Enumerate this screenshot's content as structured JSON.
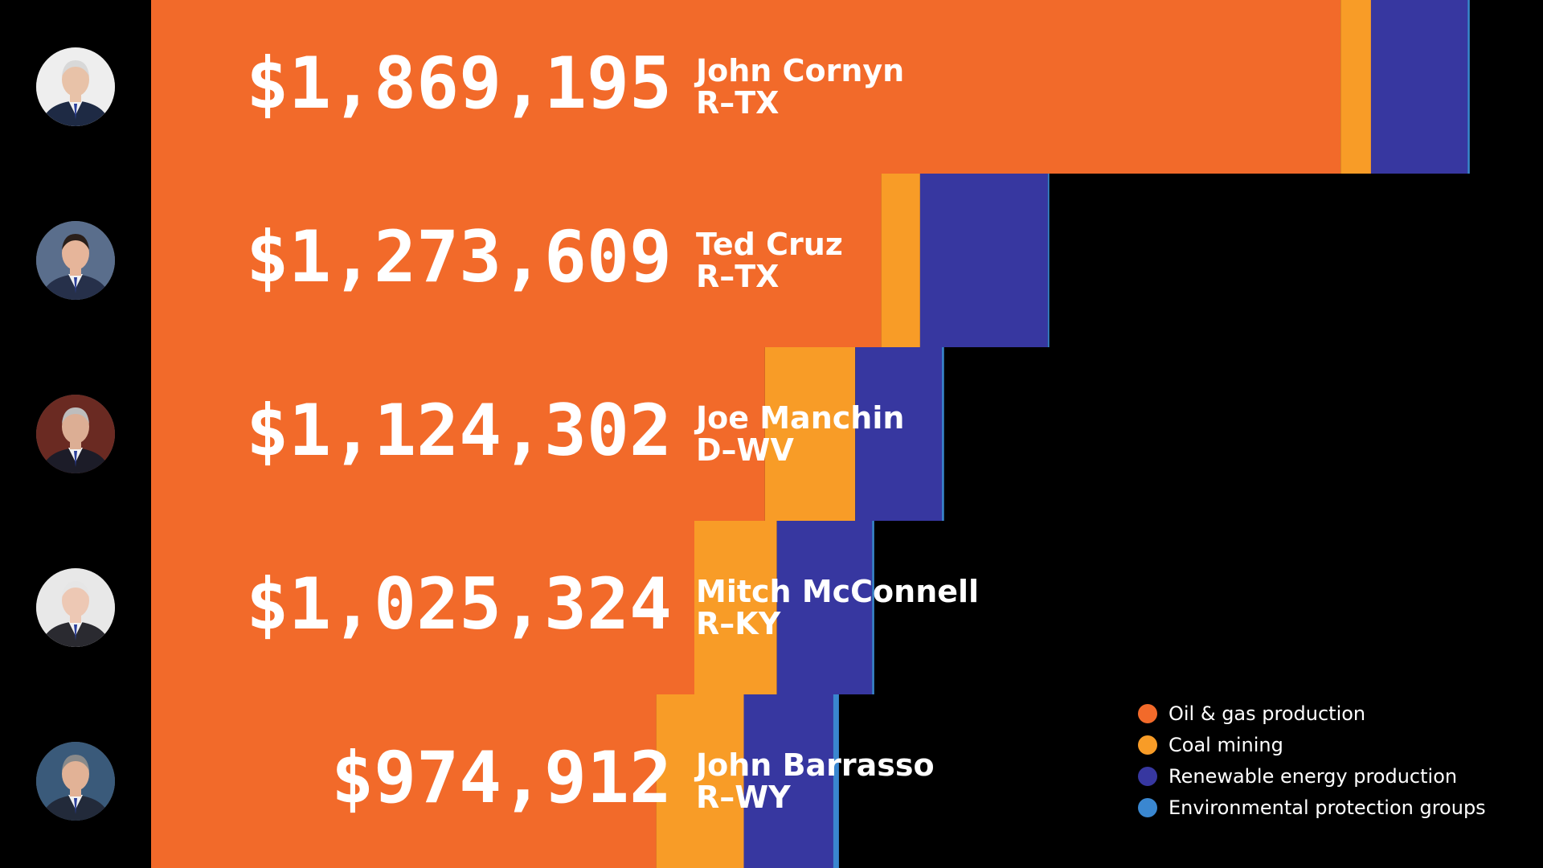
{
  "chart_data": {
    "type": "bar",
    "orientation": "horizontal",
    "stacked": true,
    "title": "",
    "xlabel": "",
    "ylabel": "",
    "categories": [
      "John Cornyn",
      "Ted Cruz",
      "Joe Manchin",
      "Mitch McConnell",
      "John Barrasso"
    ],
    "parties": [
      "R–TX",
      "R–TX",
      "D–WV",
      "R–KY",
      "R–WY"
    ],
    "totals": [
      "$1,869,195",
      "$1,273,609",
      "$1,124,302",
      "$1,025,324",
      "$974,912"
    ],
    "total_values": [
      1869195,
      1273609,
      1124302,
      1025324,
      974912
    ],
    "series": [
      {
        "name": "Oil & gas production",
        "color": "#f26a2a",
        "values": [
          1686000,
          1035000,
          870000,
          770000,
          716000
        ]
      },
      {
        "name": "Coal mining",
        "color": "#f89c27",
        "values": [
          43000,
          55000,
          128000,
          117000,
          124000
        ]
      },
      {
        "name": "Renewable energy production",
        "color": "#3737a0",
        "values": [
          137000,
          181000,
          123000,
          135000,
          127000
        ]
      },
      {
        "name": "Environmental protection groups",
        "color": "#3a87d0",
        "values": [
          3000,
          2000,
          3000,
          3000,
          8000
        ]
      }
    ],
    "xlim": [
      0,
      1869195
    ],
    "grid": false,
    "legend_position": "bottom-right"
  },
  "avatars": [
    {
      "icon": "senator-portrait-icon",
      "jacket": "#1e2a44",
      "skin": "#e8c2a8",
      "hair": "#d8d8d8",
      "bg": "#eeeeee"
    },
    {
      "icon": "senator-portrait-icon",
      "jacket": "#26304a",
      "skin": "#e6b59a",
      "hair": "#2a1f1a",
      "bg": "#5a6e8c"
    },
    {
      "icon": "senator-portrait-icon",
      "jacket": "#1c1c28",
      "skin": "#dcae94",
      "hair": "#bdbdbd",
      "bg": "#6a2a22"
    },
    {
      "icon": "senator-portrait-icon",
      "jacket": "#2a2a30",
      "skin": "#edc8b4",
      "hair": "#e6e6e6",
      "bg": "#e8e8e8"
    },
    {
      "icon": "senator-portrait-icon",
      "jacket": "#222a3a",
      "skin": "#e2b296",
      "hair": "#8a8a8a",
      "bg": "#3a5a7a"
    }
  ]
}
